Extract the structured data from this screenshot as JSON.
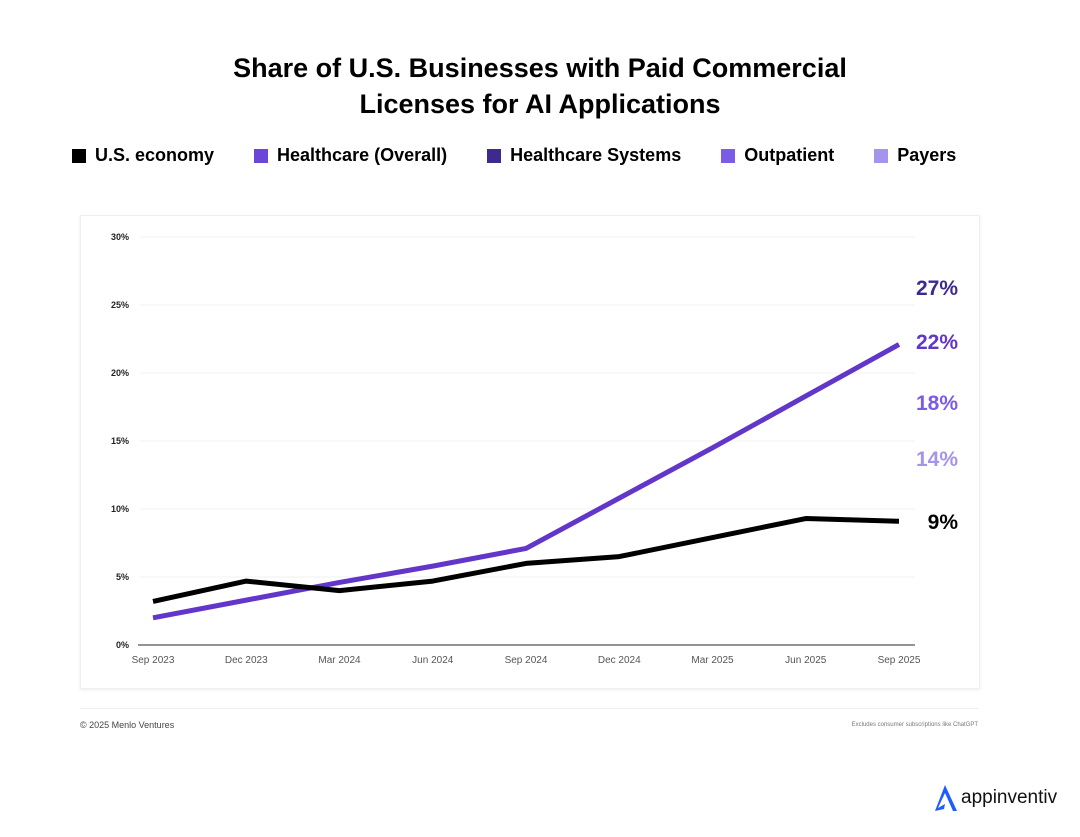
{
  "chart_data": {
    "type": "line",
    "title": "Share of U.S. Businesses with Paid Commercial Licenses for AI Applications",
    "title_lines": [
      "Share of U.S. Businesses with Paid Commercial",
      "Licenses for AI Applications"
    ],
    "categories": [
      "Sep 2023",
      "Dec 2023",
      "Mar 2024",
      "Jun 2024",
      "Sep 2024",
      "Dec 2024",
      "Mar 2025",
      "Jun 2025",
      "Sep 2025"
    ],
    "ylim": [
      0,
      30
    ],
    "yticks": [
      "0%",
      "5%",
      "10%",
      "15%",
      "20%",
      "25%",
      "30%"
    ],
    "ytick_values": [
      0,
      5,
      10,
      15,
      20,
      25,
      30
    ],
    "grid": true,
    "legend_position": "top",
    "legend": [
      {
        "name": "U.S. economy",
        "color": "#000000"
      },
      {
        "name": "Healthcare (Overall)",
        "color": "#6b46d9"
      },
      {
        "name": "Healthcare Systems",
        "color": "#3e2a8f"
      },
      {
        "name": "Outpatient",
        "color": "#7b5ce6"
      },
      {
        "name": "Payers",
        "color": "#a693ec"
      }
    ],
    "series": [
      {
        "name": "U.S. economy",
        "color": "#000000",
        "values": [
          3.2,
          4.7,
          4.0,
          4.7,
          6.0,
          6.5,
          7.9,
          9.3,
          9.1
        ]
      },
      {
        "name": "Healthcare (Overall)",
        "color": "#6236c8",
        "values": [
          2.0,
          3.3,
          4.6,
          5.8,
          7.1,
          10.8,
          14.5,
          18.3,
          22.1
        ]
      }
    ],
    "end_labels": [
      {
        "text": "27%",
        "color": "#3e2a8f"
      },
      {
        "text": "22%",
        "color": "#6236c8"
      },
      {
        "text": "18%",
        "color": "#7b5ce6"
      },
      {
        "text": "14%",
        "color": "#a693ec"
      },
      {
        "text": "9%",
        "color": "#000000"
      }
    ]
  },
  "footer": {
    "source": "© 2025 Menlo Ventures",
    "note": "Excludes consumer subscriptions like ChatGPT"
  },
  "watermark": {
    "text": "appinventiv",
    "color": "#1f5cff"
  }
}
